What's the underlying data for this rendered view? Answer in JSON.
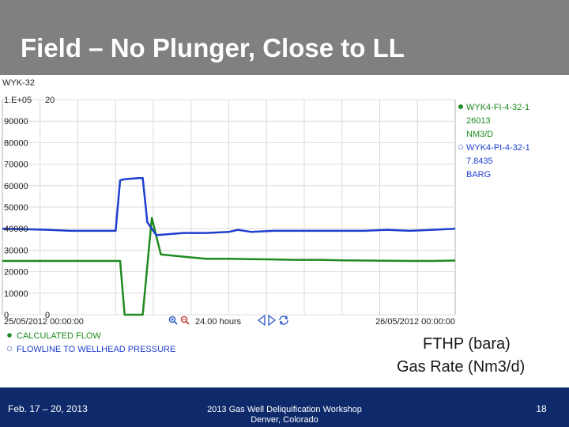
{
  "slide": {
    "title": "Field – No Plunger, Close to LL",
    "caption_pressure": "FTHP (bara)",
    "caption_rate": "Gas Rate (Nm3/d)"
  },
  "footer": {
    "date": "Feb. 17 – 20, 2013",
    "event_line1": "2013 Gas Well Deliquification Workshop",
    "event_line2": "Denver, Colorado",
    "page": "18"
  },
  "colors": {
    "title_bar": "#808080",
    "footer_bar": "#0f2a6b",
    "flow_series": "#1f8a1f",
    "pressure_series": "#1f3fcf"
  },
  "chart_data": {
    "type": "line",
    "title": "WYK-32",
    "left_axis": {
      "ylim": [
        0,
        100000
      ],
      "ticks": [
        "1.E+05",
        "90000",
        "80000",
        "70000",
        "60000",
        "50000",
        "40000",
        "30000",
        "20000",
        "10000",
        "0"
      ]
    },
    "right_axis": {
      "ylim": [
        0,
        20
      ],
      "ticks": [
        "20",
        "0"
      ]
    },
    "x_range": [
      "25/05/2012 00:00:00",
      "26/05/2012 00:00:00"
    ],
    "x_label_start": "25/05/2012 00:00:00",
    "x_label_end": "26/05/2012 00:00:00",
    "span_label": "24.00 hours",
    "grid": true,
    "legend": [
      {
        "tag": "WYK4-FI-4-32-1",
        "value": "26013",
        "unit": "NM3/D",
        "selected": true
      },
      {
        "tag": "WYK4-PI-4-32-1",
        "value": "7.8435",
        "unit": "BARG",
        "selected": false
      }
    ],
    "series": [
      {
        "name": "CALCULATED FLOW",
        "axis": "left",
        "color": "#1f8a1f",
        "x": [
          0,
          0.05,
          0.1,
          0.15,
          0.2,
          0.25,
          0.26,
          0.27,
          0.3,
          0.31,
          0.33,
          0.35,
          0.4,
          0.45,
          0.5,
          0.55,
          0.6,
          0.65,
          0.7,
          0.75,
          0.8,
          0.85,
          0.9,
          0.95,
          1.0
        ],
        "values": [
          25000,
          25000,
          25000,
          25000,
          25000,
          25000,
          25000,
          0,
          0,
          0,
          45000,
          28000,
          27000,
          26000,
          26000,
          25800,
          25700,
          25500,
          25500,
          25300,
          25200,
          25100,
          25000,
          25000,
          25200
        ]
      },
      {
        "name": "FLOWLINE TO WELLHEAD PRESSURE",
        "axis": "right",
        "color": "#1f3fcf",
        "x": [
          0,
          0.05,
          0.1,
          0.15,
          0.2,
          0.25,
          0.26,
          0.27,
          0.3,
          0.31,
          0.32,
          0.34,
          0.4,
          0.45,
          0.5,
          0.52,
          0.55,
          0.6,
          0.65,
          0.7,
          0.75,
          0.8,
          0.85,
          0.9,
          0.95,
          1.0
        ],
        "values": [
          8.0,
          7.95,
          7.9,
          7.8,
          7.8,
          7.8,
          12.5,
          12.6,
          12.7,
          12.7,
          8.6,
          7.4,
          7.6,
          7.6,
          7.7,
          7.9,
          7.7,
          7.8,
          7.8,
          7.8,
          7.8,
          7.8,
          7.9,
          7.8,
          7.9,
          8.0
        ]
      }
    ]
  }
}
